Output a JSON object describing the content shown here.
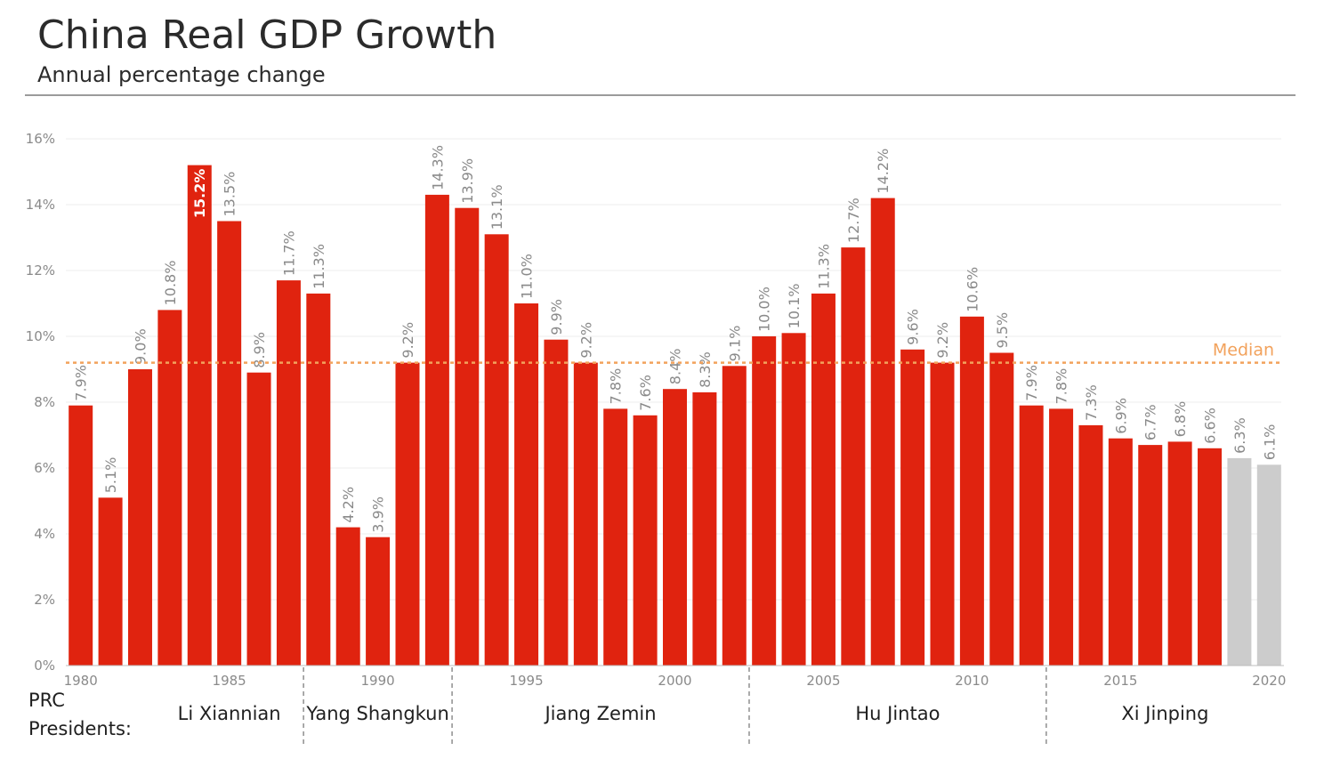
{
  "title": "China Real GDP Growth",
  "subtitle": "Annual percentage change",
  "colors": {
    "bar": "#e0230f",
    "bar_forecast": "#cccccc",
    "median": "#f2a25c",
    "grid": "#ececec",
    "axis": "#8a8a8a"
  },
  "median_label": "Median",
  "presidents_label_lines": [
    "PRC",
    "Presidents:"
  ],
  "chart_data": {
    "type": "bar",
    "title": "China Real GDP Growth",
    "subtitle": "Annual percentage change",
    "xlabel": "",
    "ylabel": "",
    "ylim": [
      0,
      16
    ],
    "y_ticks": [
      0,
      2,
      4,
      6,
      8,
      10,
      12,
      14,
      16
    ],
    "y_tick_labels": [
      "0%",
      "2%",
      "4%",
      "6%",
      "8%",
      "10%",
      "12%",
      "14%",
      "16%"
    ],
    "x_tick_years": [
      1980,
      1985,
      1990,
      1995,
      2000,
      2005,
      2010,
      2015,
      2020
    ],
    "median": 9.2,
    "categories": [
      1980,
      1981,
      1982,
      1983,
      1984,
      1985,
      1986,
      1987,
      1988,
      1989,
      1990,
      1991,
      1992,
      1993,
      1994,
      1995,
      1996,
      1997,
      1998,
      1999,
      2000,
      2001,
      2002,
      2003,
      2004,
      2005,
      2006,
      2007,
      2008,
      2009,
      2010,
      2011,
      2012,
      2013,
      2014,
      2015,
      2016,
      2017,
      2018,
      2019,
      2020
    ],
    "values": [
      7.9,
      5.1,
      9.0,
      10.8,
      15.2,
      13.5,
      8.9,
      11.7,
      11.3,
      4.2,
      3.9,
      9.2,
      14.3,
      13.9,
      13.1,
      11.0,
      9.9,
      9.2,
      7.8,
      7.6,
      8.4,
      8.3,
      9.1,
      10.0,
      10.1,
      11.3,
      12.7,
      14.2,
      9.6,
      9.2,
      10.6,
      9.5,
      7.9,
      7.8,
      7.3,
      6.9,
      6.7,
      6.8,
      6.6,
      6.3,
      6.1
    ],
    "labels": [
      "7.9%",
      "5.1%",
      "9.0%",
      "10.8%",
      "15.2%",
      "13.5%",
      "8.9%",
      "11.7%",
      "11.3%",
      "4.2%",
      "3.9%",
      "9.2%",
      "14.3%",
      "13.9%",
      "13.1%",
      "11.0%",
      "9.9%",
      "9.2%",
      "7.8%",
      "7.6%",
      "8.4%",
      "8.3%",
      "9.1%",
      "10.0%",
      "10.1%",
      "11.3%",
      "12.7%",
      "14.2%",
      "9.6%",
      "9.2%",
      "10.6%",
      "9.5%",
      "7.9%",
      "7.8%",
      "7.3%",
      "6.9%",
      "6.7%",
      "6.8%",
      "6.6%",
      "6.3%",
      "6.1%"
    ],
    "forecast_years": [
      2019,
      2020
    ],
    "highlight_label_inside": 1984,
    "presidents": [
      {
        "name": "Li Xiannian",
        "start": 1983,
        "end": 1987
      },
      {
        "name": "Yang Shangkun",
        "start": 1988,
        "end": 1992
      },
      {
        "name": "Jiang Zemin",
        "start": 1993,
        "end": 2002
      },
      {
        "name": "Hu Jintao",
        "start": 2003,
        "end": 2012
      },
      {
        "name": "Xi Jinping",
        "start": 2013,
        "end": 2020
      }
    ]
  }
}
